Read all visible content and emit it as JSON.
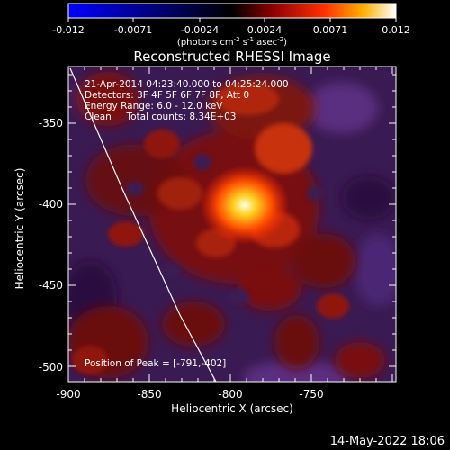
{
  "colorbar": {
    "ticks": [
      "-0.012",
      "-0.0071",
      "-0.0024",
      "0.0024",
      "0.0071",
      "0.012"
    ],
    "units_prefix": "(photons cm",
    "units_exp1": "-2",
    "units_mid": " s",
    "units_exp2": "-1",
    "units_mid2": " asec",
    "units_exp3": "-2",
    "units_suffix": ")"
  },
  "image": {
    "title": "Reconstructed RHESSI Image",
    "info": [
      "21-Apr-2014 04:23:40.000 to 04:25:24.000",
      "Detectors: 3F 4F 5F 6F 7F 8F, Att 0",
      "Energy Range: 6.0 - 12.0 keV",
      "Clean     Total counts: 8.34E+03"
    ],
    "peak_label": "Position of Peak = [-791,-402]",
    "xlabel": "Heliocentric X (arcsec)",
    "ylabel": "Heliocentric Y (arcsec)",
    "xticks": [
      "-900",
      "-850",
      "-800",
      "-750"
    ],
    "yticks": [
      "-350",
      "-400",
      "-450",
      "-500"
    ]
  },
  "footer": {
    "timestamp": "14-May-2022 18:06"
  }
}
